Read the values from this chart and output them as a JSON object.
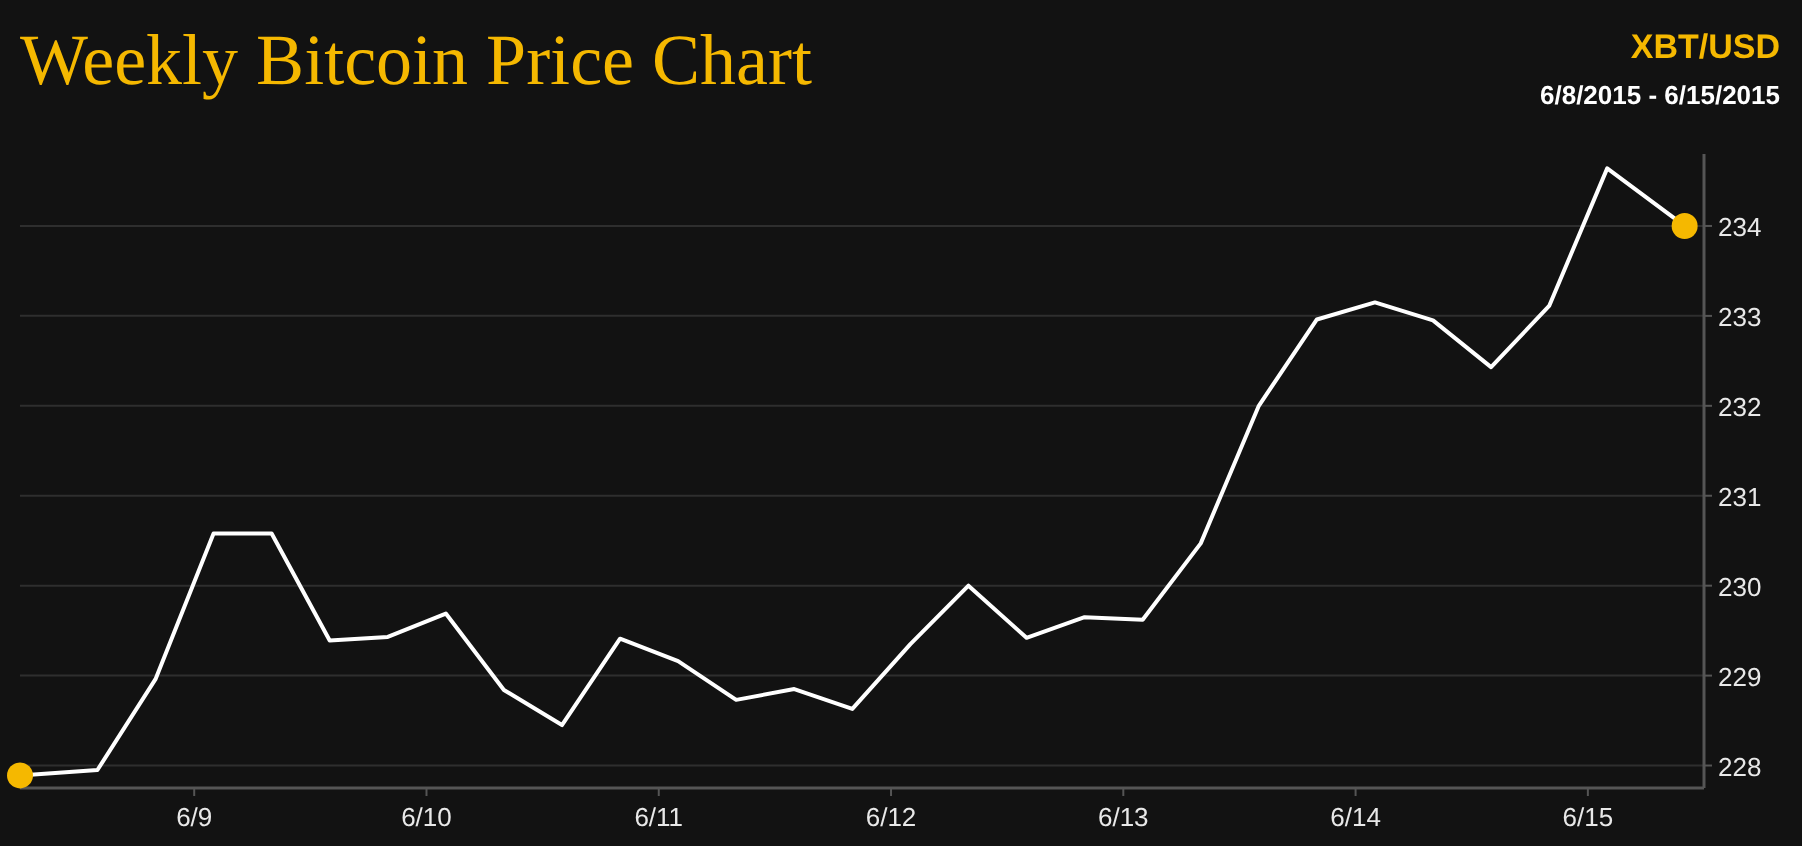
{
  "chart_data": {
    "type": "line",
    "title": "Weekly Bitcoin Price Chart",
    "subtitle": "XBT/USD",
    "annotations": [
      "6/8/2015 - 6/15/2015"
    ],
    "x": [
      "2015-06-08T06:00",
      "2015-06-08T14:00",
      "2015-06-08T20:00",
      "2015-06-09T02:00",
      "2015-06-09T08:00",
      "2015-06-09T14:00",
      "2015-06-09T20:00",
      "2015-06-10T02:00",
      "2015-06-10T08:00",
      "2015-06-10T14:00",
      "2015-06-10T20:00",
      "2015-06-11T02:00",
      "2015-06-11T08:00",
      "2015-06-11T14:00",
      "2015-06-11T20:00",
      "2015-06-12T02:00",
      "2015-06-12T08:00",
      "2015-06-12T14:00",
      "2015-06-12T20:00",
      "2015-06-13T02:00",
      "2015-06-13T08:00",
      "2015-06-13T14:00",
      "2015-06-13T20:00",
      "2015-06-14T02:00",
      "2015-06-14T08:00",
      "2015-06-14T14:00",
      "2015-06-14T20:00",
      "2015-06-15T02:00",
      "2015-06-15T10:00"
    ],
    "series": [
      {
        "color": "#ffffff",
        "marker": "none",
        "values": [
          227.89,
          227.95,
          228.96,
          230.58,
          230.58,
          229.39,
          229.43,
          229.69,
          228.84,
          228.45,
          229.41,
          229.16,
          228.73,
          228.85,
          228.63,
          229.35,
          230.0,
          229.42,
          229.65,
          229.62,
          230.47,
          232.0,
          232.96,
          233.15,
          232.95,
          232.43,
          233.11,
          234.64,
          234.0
        ]
      },
      {
        "type": "scatter",
        "color": "#f5b800",
        "marker": "circle",
        "x": [
          "2015-06-08T06:00",
          "2015-06-15T10:00"
        ],
        "values": [
          227.89,
          234.0
        ]
      }
    ],
    "xlim": [
      "2015-06-08T06:00",
      "2015-06-15T12:00"
    ],
    "xticks": [
      {
        "value": "2015-06-09",
        "label": "6/9"
      },
      {
        "value": "2015-06-10",
        "label": "6/10"
      },
      {
        "value": "2015-06-11",
        "label": "6/11"
      },
      {
        "value": "2015-06-12",
        "label": "6/12"
      },
      {
        "value": "2015-06-13",
        "label": "6/13"
      },
      {
        "value": "2015-06-14",
        "label": "6/14"
      },
      {
        "value": "2015-06-15",
        "label": "6/15"
      }
    ],
    "ylim": [
      227.75,
      234.8
    ],
    "yticks": [
      228,
      229,
      230,
      231,
      232,
      233,
      234
    ],
    "grid": "y"
  }
}
